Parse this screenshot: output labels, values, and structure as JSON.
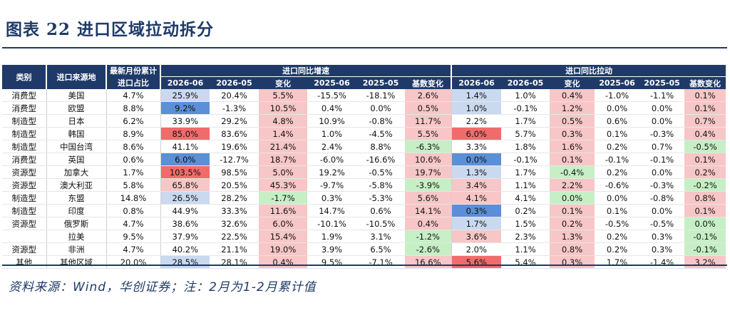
{
  "title": "图表 22 进口区域拉动拆分",
  "footnote": "资料来源：Wind，华创证券；注：2月为1-2月累计值",
  "header": {
    "type_label": "类别",
    "source_label": "进口来源地",
    "share_label_line1": "最新月份累计",
    "share_label_line2": "进口占比",
    "growth_group": "进口同比增速",
    "pull_group": "进口同比拉动",
    "growth_cols": [
      "2026-06",
      "2026-05",
      "变化",
      "2025-06",
      "2025-05",
      "基数变化"
    ],
    "pull_cols": [
      "2026-06",
      "2026-05",
      "变化",
      "2025-06",
      "2025-05",
      "基数变化"
    ]
  },
  "rows": [
    {
      "type": "消费型",
      "region": "美国",
      "share": "4.7%",
      "g": [
        "25.9%",
        "20.4%",
        "5.5%",
        "-15.5%",
        "-18.1%",
        "2.6%"
      ],
      "p": [
        "1.4%",
        "1.0%",
        "0.4%",
        "-1.0%",
        "-1.1%",
        "0.1%"
      ]
    },
    {
      "type": "消费型",
      "region": "欧盟",
      "share": "8.8%",
      "g": [
        "9.2%",
        "-1.3%",
        "10.5%",
        "0.4%",
        "0.0%",
        "0.5%"
      ],
      "p": [
        "1.0%",
        "-0.1%",
        "1.2%",
        "0.0%",
        "0.0%",
        "0.1%"
      ]
    },
    {
      "type": "制造型",
      "region": "日本",
      "share": "6.2%",
      "g": [
        "33.9%",
        "29.2%",
        "4.8%",
        "10.9%",
        "-0.8%",
        "11.7%"
      ],
      "p": [
        "2.2%",
        "1.7%",
        "0.5%",
        "0.6%",
        "0.0%",
        "0.7%"
      ]
    },
    {
      "type": "制造型",
      "region": "韩国",
      "share": "8.9%",
      "g": [
        "85.0%",
        "83.6%",
        "1.4%",
        "1.0%",
        "-4.5%",
        "5.5%"
      ],
      "p": [
        "6.0%",
        "5.7%",
        "0.3%",
        "0.1%",
        "-0.3%",
        "0.4%"
      ]
    },
    {
      "type": "制造型",
      "region": "中国台湾",
      "share": "8.6%",
      "g": [
        "41.1%",
        "19.6%",
        "21.4%",
        "2.4%",
        "8.8%",
        "-6.3%"
      ],
      "p": [
        "3.3%",
        "1.8%",
        "1.6%",
        "0.2%",
        "0.7%",
        "-0.5%"
      ]
    },
    {
      "type": "消费型",
      "region": "英国",
      "share": "0.6%",
      "g": [
        "6.0%",
        "-12.7%",
        "18.7%",
        "-6.0%",
        "-16.6%",
        "10.6%"
      ],
      "p": [
        "0.0%",
        "-0.1%",
        "0.1%",
        "-0.1%",
        "-0.1%",
        "0.1%"
      ]
    },
    {
      "type": "资源型",
      "region": "加拿大",
      "share": "1.7%",
      "g": [
        "103.5%",
        "98.5%",
        "5.0%",
        "19.2%",
        "-0.5%",
        "19.7%"
      ],
      "p": [
        "1.3%",
        "1.7%",
        "-0.4%",
        "0.2%",
        "0.0%",
        "0.2%"
      ]
    },
    {
      "type": "资源型",
      "region": "澳大利亚",
      "share": "5.8%",
      "g": [
        "65.8%",
        "20.5%",
        "45.3%",
        "-9.7%",
        "-5.8%",
        "-3.9%"
      ],
      "p": [
        "3.4%",
        "1.1%",
        "2.2%",
        "-0.6%",
        "-0.3%",
        "-0.2%"
      ]
    },
    {
      "type": "制造型",
      "region": "东盟",
      "share": "14.8%",
      "g": [
        "26.5%",
        "28.2%",
        "-1.7%",
        "0.3%",
        "-5.3%",
        "5.6%"
      ],
      "p": [
        "4.1%",
        "4.1%",
        "0.0%",
        "0.0%",
        "-0.8%",
        "0.8%"
      ]
    },
    {
      "type": "制造型",
      "region": "印度",
      "share": "0.8%",
      "g": [
        "44.9%",
        "33.3%",
        "11.6%",
        "14.7%",
        "0.6%",
        "14.1%"
      ],
      "p": [
        "0.3%",
        "0.2%",
        "0.1%",
        "0.1%",
        "0.0%",
        "0.1%"
      ]
    },
    {
      "type": "资源型",
      "region": "俄罗斯",
      "share": "4.7%",
      "g": [
        "38.6%",
        "32.6%",
        "6.0%",
        "-10.1%",
        "-10.5%",
        "0.4%"
      ],
      "p": [
        "1.7%",
        "1.5%",
        "0.2%",
        "-0.5%",
        "-0.5%",
        "0.0%"
      ]
    },
    {
      "type": "",
      "region": "拉美",
      "share": "9.5%",
      "g": [
        "37.9%",
        "22.5%",
        "15.4%",
        "1.9%",
        "3.1%",
        "-1.2%"
      ],
      "p": [
        "3.6%",
        "2.3%",
        "1.3%",
        "0.2%",
        "0.3%",
        "-0.1%"
      ]
    },
    {
      "type": "资源型",
      "region": "非洲",
      "share": "4.7%",
      "g": [
        "40.2%",
        "21.1%",
        "19.0%",
        "3.9%",
        "6.5%",
        "-2.6%"
      ],
      "p": [
        "2.0%",
        "1.1%",
        "0.8%",
        "0.2%",
        "0.3%",
        "-0.1%"
      ]
    },
    {
      "type": "其他",
      "region": "其他区域",
      "share": "20.0%",
      "g": [
        "28.5%",
        "28.1%",
        "0.4%",
        "9.5%",
        "-7.1%",
        "16.6%"
      ],
      "p": [
        "5.6%",
        "5.4%",
        "0.3%",
        "1.7%",
        "-1.4%",
        "3.2%"
      ]
    }
  ],
  "colors": {
    "header_bg": "#1f3a68",
    "blue_strong": "#5b8fd6",
    "blue_light": "#c9d9f0",
    "red_strong": "#f26b6b",
    "red_light": "#f7c6c6",
    "green_light": "#c6efc6",
    "title_color": "#1f3a68"
  }
}
